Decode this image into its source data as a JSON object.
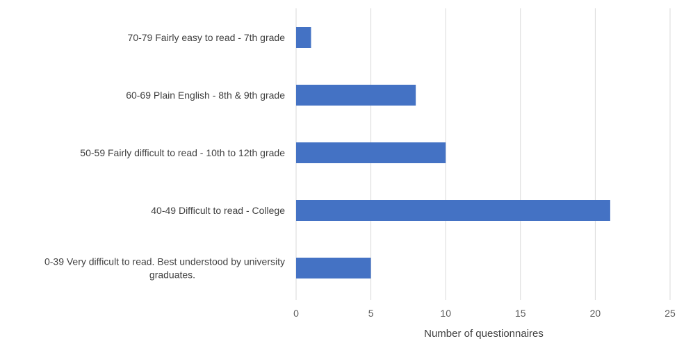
{
  "chart_data": {
    "type": "bar",
    "orientation": "horizontal",
    "categories": [
      "70-79 Fairly easy to read - 7th grade",
      "60-69 Plain English - 8th & 9th grade",
      "50-59 Fairly difficult to read - 10th to 12th grade",
      "40-49 Difficult to read - College",
      "0-39 Very difficult to read. Best understood by university graduates."
    ],
    "category_lines": [
      [
        "70-79 Fairly easy to read - 7th grade"
      ],
      [
        "60-69 Plain English - 8th & 9th grade"
      ],
      [
        "50-59 Fairly difficult to read - 10th to 12th grade"
      ],
      [
        "40-49 Difficult to read - College"
      ],
      [
        "0-39 Very difficult to read. Best understood by university",
        "graduates."
      ]
    ],
    "values": [
      1,
      8,
      10,
      21,
      5
    ],
    "title": "",
    "xlabel": "Number of questionnaires",
    "ylabel": "",
    "xlim": [
      0,
      25
    ],
    "xticks": [
      0,
      5,
      10,
      15,
      20,
      25
    ],
    "grid": "vertical",
    "bar_color": "#4472C4",
    "grid_color": "#D9D9D9"
  }
}
